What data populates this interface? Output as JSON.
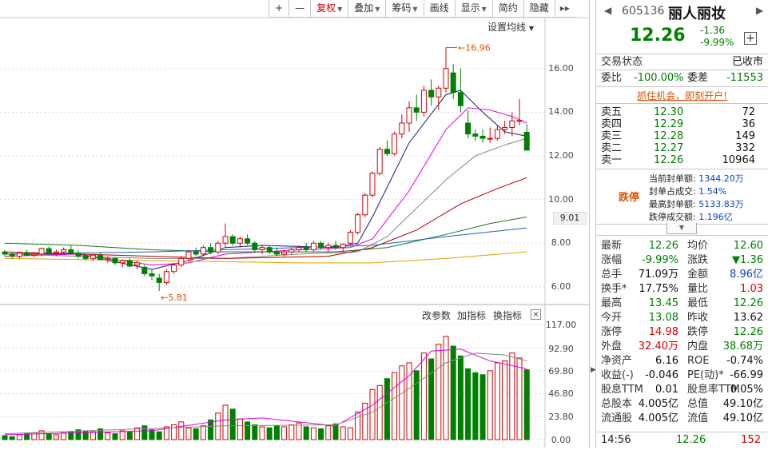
{
  "toolbar": {
    "items": [
      {
        "label": "+",
        "type": "plain"
      },
      {
        "label": "—",
        "type": "plain"
      },
      {
        "label": "复权",
        "type": "active",
        "caret": true
      },
      {
        "label": "叠加",
        "type": "plain",
        "caret": true
      },
      {
        "label": "筹码",
        "type": "plain",
        "caret": true
      },
      {
        "label": "画线",
        "type": "plain"
      },
      {
        "label": "显示",
        "type": "plain",
        "caret": true
      },
      {
        "label": "简约",
        "type": "plain"
      },
      {
        "label": "隐藏",
        "type": "plain"
      }
    ],
    "expand_arrow": "▸▸"
  },
  "ma_settings_label": "设置均线",
  "price_axis": [
    "16.00",
    "14.00",
    "12.00",
    "10.00",
    "8.00",
    "6.00"
  ],
  "current_price_tag": "9.01",
  "high_marker": "16.96",
  "low_marker": "5.81",
  "volume_axis": [
    "117.00",
    "92.90",
    "69.80",
    "46.80",
    "23.80",
    "0.00"
  ],
  "volume_tools": {
    "params": "改参数",
    "add": "加指标",
    "switch": "换指标",
    "close": "×"
  },
  "colors": {
    "up": "#d40000",
    "down": "#008000",
    "ma5": "#1a1a6e",
    "ma10": "#e000e0",
    "ma20": "#888888",
    "ma30": "#b00000",
    "ma60": "#207020",
    "ma120": "#2060c0",
    "ma250": "#e0a000"
  },
  "stock": {
    "code": "605136",
    "name": "丽人丽妆",
    "price": "12.26",
    "change": "-1.36",
    "change_pct": "-9.99%"
  },
  "trade_status": {
    "label": "交易状态",
    "value": "已收市"
  },
  "ratio": {
    "wb_label": "委比",
    "wb_value": "-100.00%",
    "wc_label": "委差",
    "wc_value": "-11553"
  },
  "promo_text": "抓住机会，即刻开户!",
  "order_book": [
    {
      "label": "卖五",
      "price": "12.30",
      "qty": "72"
    },
    {
      "label": "卖四",
      "price": "12.29",
      "qty": "36"
    },
    {
      "label": "卖三",
      "price": "12.28",
      "qty": "149"
    },
    {
      "label": "卖二",
      "price": "12.27",
      "qty": "332"
    },
    {
      "label": "卖一",
      "price": "12.26",
      "qty": "10964"
    }
  ],
  "limit_down": {
    "tag": "跌停",
    "lines": [
      {
        "label": "当前封单额:",
        "value": "1344.20万"
      },
      {
        "label": "封单占成交:",
        "value": "1.54%"
      },
      {
        "label": "最高封单额:",
        "value": "5133.83万"
      },
      {
        "label": "跌停成交额:",
        "value": "1.196亿"
      }
    ]
  },
  "quotes": [
    {
      "l1": "最新",
      "v1": "12.26",
      "c1": "g",
      "l2": "均价",
      "v2": "12.60",
      "c2": "g"
    },
    {
      "l1": "涨幅",
      "v1": "-9.99%",
      "c1": "g",
      "l2": "涨跌",
      "v2": "▼1.36",
      "c2": "g"
    },
    {
      "l1": "总手",
      "v1": "71.09万",
      "c1": "k",
      "l2": "金额",
      "v2": "8.96亿",
      "c2": "b"
    },
    {
      "l1": "换手*",
      "v1": "17.75%",
      "c1": "k",
      "l2": "量比",
      "v2": "1.03",
      "c2": "r"
    },
    {
      "l1": "最高",
      "v1": "13.45",
      "c1": "g",
      "l2": "最低",
      "v2": "12.26",
      "c2": "g"
    },
    {
      "l1": "今开",
      "v1": "13.08",
      "c1": "g",
      "l2": "昨收",
      "v2": "13.62",
      "c2": "k"
    },
    {
      "l1": "涨停",
      "v1": "14.98",
      "c1": "r",
      "l2": "跌停",
      "v2": "12.26",
      "c2": "g"
    },
    {
      "l1": "外盘",
      "v1": "32.40万",
      "c1": "r",
      "l2": "内盘",
      "v2": "38.68万",
      "c2": "g"
    },
    {
      "l1": "净资产",
      "v1": "6.16",
      "c1": "k",
      "l2": "ROE",
      "v2": "-0.74%",
      "c2": "k"
    },
    {
      "l1": "收益(-)",
      "v1": "-0.046",
      "c1": "k",
      "l2": "PE(动)*",
      "v2": "-66.99",
      "c2": "k"
    },
    {
      "l1": "股息TTM",
      "v1": "0.01",
      "c1": "k",
      "l2": "股息率TTM",
      "v2": "0.05%",
      "c2": "k"
    },
    {
      "l1": "总股本",
      "v1": "4.005亿",
      "c1": "k",
      "l2": "总值",
      "v2": "49.10亿",
      "c2": "k"
    },
    {
      "l1": "流通股",
      "v1": "4.005亿",
      "c1": "k",
      "l2": "流值",
      "v2": "49.10亿",
      "c2": "k"
    }
  ],
  "footer": {
    "time": "14:56",
    "price": "12.26",
    "volume": "152"
  },
  "chart_data": {
    "type": "candlestick",
    "candles": [
      [
        7.6,
        7.7,
        7.4,
        7.5
      ],
      [
        7.5,
        7.6,
        7.3,
        7.4
      ],
      [
        7.4,
        7.6,
        7.3,
        7.55
      ],
      [
        7.55,
        7.7,
        7.4,
        7.45
      ],
      [
        7.45,
        7.6,
        7.35,
        7.5
      ],
      [
        7.5,
        7.8,
        7.4,
        7.75
      ],
      [
        7.75,
        7.85,
        7.5,
        7.55
      ],
      [
        7.55,
        7.7,
        7.4,
        7.6
      ],
      [
        7.6,
        7.8,
        7.5,
        7.7
      ],
      [
        7.7,
        7.9,
        7.5,
        7.55
      ],
      [
        7.55,
        7.7,
        7.3,
        7.4
      ],
      [
        7.4,
        7.5,
        7.2,
        7.3
      ],
      [
        7.3,
        7.5,
        7.2,
        7.45
      ],
      [
        7.45,
        7.55,
        7.2,
        7.25
      ],
      [
        7.25,
        7.4,
        7.1,
        7.3
      ],
      [
        7.3,
        7.35,
        7.0,
        7.1
      ],
      [
        7.1,
        7.25,
        6.9,
        7.2
      ],
      [
        7.2,
        7.3,
        6.9,
        6.95
      ],
      [
        7.0,
        7.2,
        6.8,
        7.1
      ],
      [
        6.9,
        7.0,
        6.5,
        6.6
      ],
      [
        6.6,
        6.8,
        6.3,
        6.5
      ],
      [
        6.4,
        6.6,
        5.81,
        6.2
      ],
      [
        6.2,
        6.8,
        6.1,
        6.7
      ],
      [
        6.7,
        7.1,
        6.6,
        7.0
      ],
      [
        7.0,
        7.4,
        6.9,
        7.3
      ],
      [
        7.3,
        7.7,
        7.2,
        7.6
      ],
      [
        7.6,
        7.8,
        7.4,
        7.5
      ],
      [
        7.5,
        7.9,
        7.4,
        7.8
      ],
      [
        7.8,
        8.0,
        7.5,
        7.6
      ],
      [
        7.6,
        8.1,
        7.5,
        8.0
      ],
      [
        8.0,
        8.9,
        7.8,
        8.3
      ],
      [
        8.3,
        8.4,
        7.9,
        8.0
      ],
      [
        8.0,
        8.3,
        7.8,
        8.2
      ],
      [
        8.2,
        8.4,
        7.9,
        8.0
      ],
      [
        8.0,
        8.1,
        7.6,
        7.7
      ],
      [
        7.7,
        7.9,
        7.5,
        7.8
      ],
      [
        7.8,
        7.9,
        7.5,
        7.6
      ],
      [
        7.6,
        7.8,
        7.4,
        7.5
      ],
      [
        7.5,
        7.7,
        7.4,
        7.6
      ],
      [
        7.6,
        7.8,
        7.5,
        7.7
      ],
      [
        7.7,
        7.9,
        7.6,
        7.8
      ],
      [
        7.8,
        8.0,
        7.6,
        7.7
      ],
      [
        7.7,
        8.1,
        7.6,
        8.0
      ],
      [
        8.0,
        8.1,
        7.7,
        7.8
      ],
      [
        7.8,
        8.0,
        7.6,
        7.9
      ],
      [
        7.9,
        8.1,
        7.7,
        7.8
      ],
      [
        7.8,
        8.0,
        7.6,
        7.95
      ],
      [
        8.0,
        8.6,
        7.9,
        8.5
      ],
      [
        8.5,
        9.4,
        8.4,
        9.3
      ],
      [
        9.3,
        10.3,
        9.2,
        10.2
      ],
      [
        10.2,
        11.3,
        10.1,
        11.2
      ],
      [
        11.2,
        12.4,
        11.1,
        12.3
      ],
      [
        12.3,
        12.7,
        12.0,
        12.1
      ],
      [
        12.1,
        13.1,
        12.0,
        13.0
      ],
      [
        13.0,
        13.9,
        12.8,
        13.5
      ],
      [
        13.5,
        14.5,
        13.1,
        14.2
      ],
      [
        14.2,
        14.8,
        13.6,
        14.0
      ],
      [
        14.0,
        15.2,
        13.8,
        15.0
      ],
      [
        15.0,
        15.5,
        14.3,
        14.7
      ],
      [
        14.7,
        15.2,
        14.1,
        15.1
      ],
      [
        15.1,
        16.96,
        14.9,
        16.0
      ],
      [
        15.8,
        16.2,
        14.6,
        14.9
      ],
      [
        14.9,
        16.0,
        14.0,
        14.3
      ],
      [
        13.5,
        14.1,
        12.8,
        13.0
      ],
      [
        13.0,
        13.2,
        12.7,
        12.9
      ],
      [
        12.9,
        13.2,
        12.6,
        12.8
      ],
      [
        12.8,
        13.3,
        12.6,
        12.8
      ],
      [
        12.8,
        13.4,
        12.7,
        13.2
      ],
      [
        13.2,
        13.6,
        13.0,
        13.3
      ],
      [
        13.3,
        14.0,
        12.9,
        13.6
      ],
      [
        13.6,
        14.6,
        13.4,
        13.62
      ],
      [
        13.08,
        13.45,
        12.26,
        12.26
      ]
    ],
    "volume": [
      4,
      3,
      5,
      6,
      7,
      9,
      6,
      5,
      7,
      8,
      10,
      9,
      8,
      11,
      7,
      6,
      9,
      8,
      12,
      14,
      10,
      8,
      13,
      15,
      18,
      12,
      11,
      14,
      20,
      27,
      35,
      31,
      21,
      18,
      15,
      13,
      12,
      14,
      13,
      15,
      17,
      13,
      12,
      11,
      14,
      16,
      13,
      12,
      28,
      37,
      51,
      55,
      62,
      68,
      75,
      78,
      70,
      88,
      82,
      97,
      105,
      95,
      85,
      72,
      68,
      66,
      70,
      78,
      80,
      88,
      83,
      71
    ],
    "ma": [
      {
        "name": "MA5",
        "key": "ma5",
        "points": [
          [
            0,
            7.5
          ],
          [
            10,
            7.5
          ],
          [
            20,
            6.8
          ],
          [
            25,
            7.2
          ],
          [
            30,
            7.8
          ],
          [
            35,
            7.9
          ],
          [
            45,
            7.8
          ],
          [
            48,
            8.0
          ],
          [
            50,
            9.2
          ],
          [
            55,
            12.6
          ],
          [
            60,
            14.8
          ],
          [
            62,
            15.0
          ],
          [
            65,
            14.0
          ],
          [
            68,
            13.1
          ],
          [
            71,
            12.9
          ]
        ]
      },
      {
        "name": "MA10",
        "key": "ma10",
        "points": [
          [
            0,
            7.4
          ],
          [
            10,
            7.5
          ],
          [
            20,
            7.0
          ],
          [
            25,
            7.1
          ],
          [
            30,
            7.5
          ],
          [
            40,
            7.7
          ],
          [
            47,
            7.8
          ],
          [
            50,
            8.2
          ],
          [
            55,
            10.4
          ],
          [
            60,
            13.2
          ],
          [
            63,
            14.2
          ],
          [
            66,
            14.1
          ],
          [
            69,
            13.8
          ],
          [
            71,
            13.5
          ]
        ]
      },
      {
        "name": "MA20",
        "key": "ma20",
        "points": [
          [
            0,
            7.5
          ],
          [
            20,
            7.3
          ],
          [
            30,
            7.3
          ],
          [
            40,
            7.5
          ],
          [
            48,
            7.6
          ],
          [
            52,
            8.3
          ],
          [
            56,
            9.6
          ],
          [
            60,
            10.9
          ],
          [
            64,
            12.0
          ],
          [
            68,
            12.5
          ],
          [
            71,
            12.8
          ]
        ]
      },
      {
        "name": "MA30",
        "key": "ma30",
        "points": [
          [
            0,
            7.6
          ],
          [
            20,
            7.4
          ],
          [
            30,
            7.3
          ],
          [
            44,
            7.4
          ],
          [
            50,
            7.8
          ],
          [
            56,
            8.6
          ],
          [
            62,
            9.8
          ],
          [
            67,
            10.5
          ],
          [
            71,
            11.0
          ]
        ]
      },
      {
        "name": "MA60",
        "key": "ma60",
        "points": [
          [
            0,
            8.0
          ],
          [
            10,
            7.9
          ],
          [
            20,
            7.7
          ],
          [
            30,
            7.6
          ],
          [
            45,
            7.6
          ],
          [
            52,
            7.8
          ],
          [
            60,
            8.4
          ],
          [
            66,
            8.9
          ],
          [
            71,
            9.2
          ]
        ]
      },
      {
        "name": "MA120",
        "key": "ma120",
        "points": [
          [
            0,
            7.5
          ],
          [
            20,
            7.6
          ],
          [
            40,
            7.8
          ],
          [
            50,
            7.9
          ],
          [
            60,
            8.3
          ],
          [
            71,
            8.7
          ]
        ]
      },
      {
        "name": "MA250",
        "key": "ma250",
        "points": [
          [
            0,
            7.3
          ],
          [
            20,
            7.2
          ],
          [
            40,
            7.1
          ],
          [
            50,
            7.1
          ],
          [
            60,
            7.3
          ],
          [
            71,
            7.6
          ]
        ]
      }
    ],
    "vol_ma": [
      {
        "key": "ma10",
        "points": [
          [
            0,
            5
          ],
          [
            20,
            9
          ],
          [
            30,
            20
          ],
          [
            35,
            22
          ],
          [
            45,
            14
          ],
          [
            50,
            35
          ],
          [
            55,
            65
          ],
          [
            58,
            90
          ],
          [
            62,
            92
          ],
          [
            66,
            80
          ],
          [
            71,
            72
          ]
        ]
      },
      {
        "key": "ma20",
        "points": [
          [
            0,
            6
          ],
          [
            30,
            14
          ],
          [
            45,
            15
          ],
          [
            50,
            28
          ],
          [
            55,
            52
          ],
          [
            60,
            78
          ],
          [
            64,
            88
          ],
          [
            68,
            86
          ],
          [
            71,
            80
          ]
        ]
      }
    ],
    "ylim": [
      5.3,
      17.6
    ],
    "vol_ylim": [
      0,
      117
    ]
  }
}
